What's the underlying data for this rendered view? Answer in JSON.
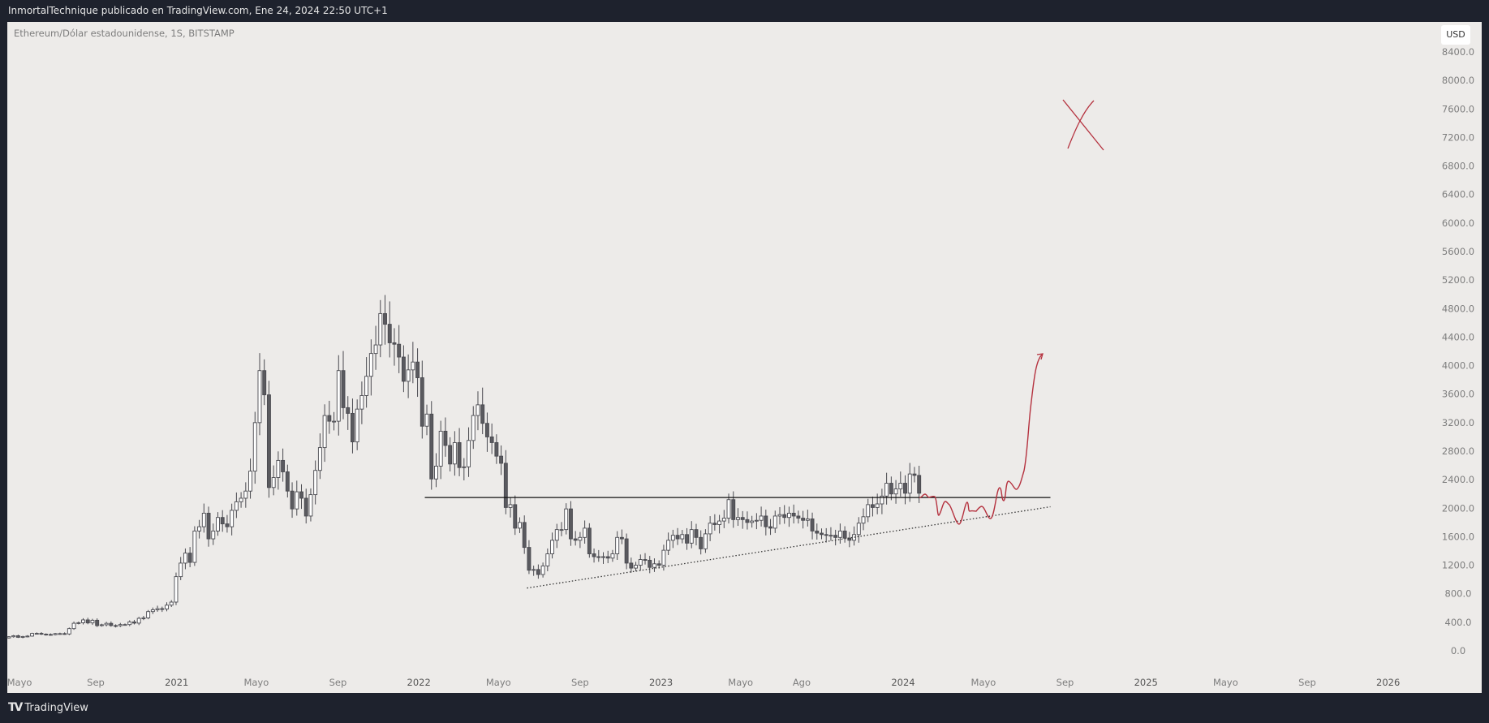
{
  "header": {
    "text": "InmortalTechnique publicado en TradingView.com, Ene 24, 2024 22:50 UTC+1"
  },
  "symbol": {
    "text": "Ethereum/Dólar estadounidense, 1S, BITSTAMP"
  },
  "currency_button": "USD",
  "footer": {
    "logo_mark": "TV",
    "brand": "TradingView"
  },
  "colors": {
    "background": "#1e222d",
    "chart_bg": "#edebe9",
    "candle_down": "#5a5a5f",
    "candle_up": "#ffffff",
    "drawing": "#b5323f"
  },
  "chart_data": {
    "type": "candlestick",
    "interval": "weekly",
    "price_ticks": [
      "0.0",
      "400.0",
      "800.0",
      "1200.0",
      "1600.0",
      "2000.0",
      "2400.0",
      "2800.0",
      "3200.0",
      "3600.0",
      "4000.0",
      "4400.0",
      "4800.0",
      "5200.0",
      "5600.0",
      "6000.0",
      "6400.0",
      "6800.0",
      "7200.0",
      "7600.0",
      "8000.0",
      "8400.0"
    ],
    "time_ticks": [
      {
        "label": "Mayo",
        "date": "2020-05-01",
        "year": false
      },
      {
        "label": "Sep",
        "date": "2020-09-01",
        "year": false
      },
      {
        "label": "2021",
        "date": "2021-01-01",
        "year": true
      },
      {
        "label": "Mayo",
        "date": "2021-05-01",
        "year": false
      },
      {
        "label": "Sep",
        "date": "2021-09-01",
        "year": false
      },
      {
        "label": "2022",
        "date": "2022-01-01",
        "year": true
      },
      {
        "label": "Mayo",
        "date": "2022-05-01",
        "year": false
      },
      {
        "label": "Sep",
        "date": "2022-09-01",
        "year": false
      },
      {
        "label": "2023",
        "date": "2023-01-01",
        "year": true
      },
      {
        "label": "Mayo",
        "date": "2023-05-01",
        "year": false
      },
      {
        "label": "Ago",
        "date": "2023-08-01",
        "year": false
      },
      {
        "label": "2024",
        "date": "2024-01-01",
        "year": true
      },
      {
        "label": "Mayo",
        "date": "2024-05-01",
        "year": false
      },
      {
        "label": "Sep",
        "date": "2024-09-01",
        "year": false
      },
      {
        "label": "2025",
        "date": "2025-01-01",
        "year": true
      },
      {
        "label": "Mayo",
        "date": "2025-05-01",
        "year": false
      },
      {
        "label": "Sep",
        "date": "2025-09-01",
        "year": false
      },
      {
        "label": "2026",
        "date": "2026-01-01",
        "year": true
      }
    ],
    "first_week": "2020-04-20",
    "first_open": 180,
    "weekly_closes": [
      197,
      211,
      189,
      200,
      206,
      243,
      244,
      233,
      229,
      226,
      241,
      241,
      236,
      311,
      386,
      394,
      433,
      391,
      428,
      353,
      365,
      385,
      354,
      352,
      368,
      368,
      405,
      388,
      455,
      461,
      550,
      575,
      591,
      586,
      640,
      683,
      1040,
      1230,
      1370,
      1240,
      1680,
      1740,
      1930,
      1570,
      1680,
      1870,
      1780,
      1740,
      1970,
      2090,
      2140,
      2240,
      2520,
      3200,
      3930,
      3590,
      2290,
      2430,
      2670,
      2510,
      2240,
      1990,
      2230,
      2140,
      1890,
      2190,
      2530,
      2850,
      3300,
      3220,
      3220,
      3930,
      3410,
      3330,
      2930,
      3390,
      3580,
      3850,
      4170,
      4290,
      4730,
      4580,
      4320,
      4300,
      4120,
      3780,
      3940,
      4050,
      3830,
      3150,
      3320,
      2410,
      2590,
      3080,
      2880,
      2620,
      2920,
      2570,
      2580,
      2950,
      3300,
      3450,
      3190,
      3000,
      2920,
      2730,
      2630,
      2010,
      2050,
      1720,
      1800,
      1450,
      1130,
      1140,
      1070,
      1190,
      1360,
      1550,
      1700,
      1700,
      1990,
      1570,
      1550,
      1590,
      1720,
      1360,
      1320,
      1310,
      1320,
      1300,
      1360,
      1590,
      1570,
      1230,
      1160,
      1200,
      1280,
      1270,
      1170,
      1220,
      1200,
      1410,
      1550,
      1620,
      1570,
      1630,
      1510,
      1700,
      1590,
      1430,
      1640,
      1790,
      1770,
      1820,
      1860,
      2120,
      1840,
      1870,
      1840,
      1800,
      1820,
      1830,
      1890,
      1740,
      1720,
      1890,
      1910,
      1870,
      1930,
      1890,
      1860,
      1830,
      1850,
      1680,
      1650,
      1630,
      1620,
      1620,
      1590,
      1680,
      1580,
      1550,
      1630,
      1790,
      1880,
      2050,
      2010,
      2060,
      2170,
      2350,
      2200,
      2270,
      2350,
      2210,
      2480,
      2460,
      2210
    ],
    "annotations": {
      "horizontal_line": {
        "price": 2150,
        "from": "2022-01-10",
        "to": "2024-08-10"
      },
      "trend_line": {
        "from": {
          "date": "2022-06-13",
          "price": 880
        },
        "to": {
          "date": "2024-08-10",
          "price": 2020
        }
      }
    }
  }
}
